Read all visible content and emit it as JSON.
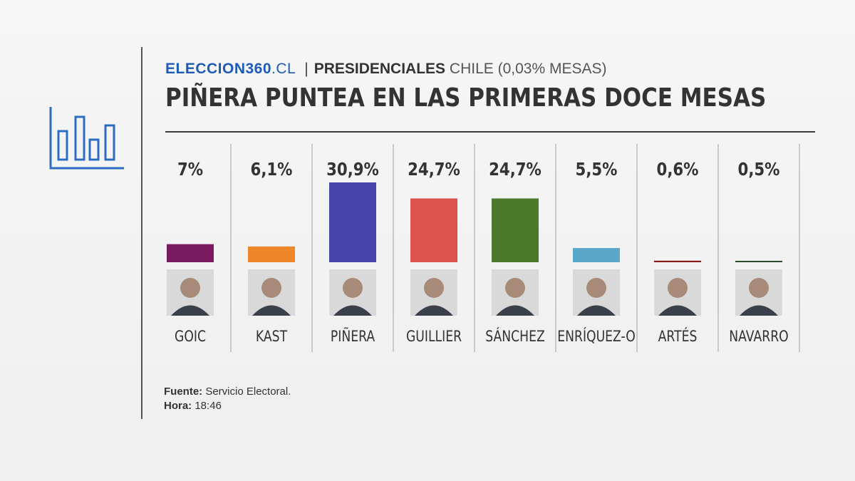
{
  "header": {
    "logo_main": "ELECCION360",
    "logo_tld": ".CL",
    "separator": "|",
    "section": "PRESIDENCIALES",
    "section_rest": " CHILE (0,03% MESAS)",
    "headline": "PIÑERA PUNTEA EN LAS PRIMERAS DOCE MESAS"
  },
  "footer": {
    "source_label": "Fuente:",
    "source_value": " Servicio Electoral.",
    "time_label": "Hora:",
    "time_value": " 18:46"
  },
  "icons": {
    "decoration": "bar-chart-icon",
    "candidate_photo": "person-photo-icon"
  },
  "chart_data": {
    "type": "bar",
    "categories": [
      "GOIC",
      "KAST",
      "PIÑERA",
      "GUILLIER",
      "SÁNCHEZ",
      "ENRÍQUEZ-O",
      "ARTÉS",
      "NAVARRO"
    ],
    "values": [
      7,
      6.1,
      30.9,
      24.7,
      24.7,
      5.5,
      0.6,
      0.5
    ],
    "value_labels": [
      "7%",
      "6,1%",
      "30,9%",
      "24,7%",
      "24,7%",
      "5,5%",
      "0,6%",
      "0,5%"
    ],
    "colors": [
      "#7a1a5f",
      "#f0862a",
      "#4444aa",
      "#dc524b",
      "#4c7a2c",
      "#5aa8c9",
      "#8b1a1a",
      "#2e4a2e"
    ],
    "ylim": [
      0,
      30.9
    ],
    "grid": false,
    "legend": "none"
  }
}
